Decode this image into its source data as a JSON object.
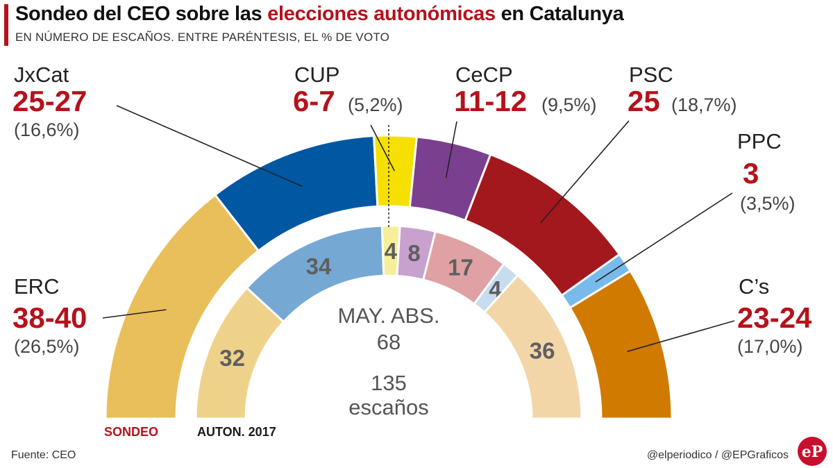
{
  "header": {
    "title_prefix": "Sondeo del CEO sobre las ",
    "title_accent": "elecciones autonómicas",
    "title_suffix": " en Catalunya",
    "subtitle": "EN NÚMERO DE ESCAÑOS.  ENTRE PARÉNTESIS, EL % DE VOTO"
  },
  "chart_data": {
    "type": "parliament-semicircle",
    "title": "Sondeo del CEO sobre las elecciones autonómicas en Catalunya",
    "subtitle": "EN NÚMERO DE ESCAÑOS.  ENTRE PARÉNTESIS, EL % DE VOTO",
    "total_seats": 135,
    "majority_seats": 68,
    "rings": [
      {
        "name": "SONDEO",
        "label": "SONDEO",
        "series": [
          {
            "party": "ERC",
            "seats_label": "38-40",
            "seats": 39,
            "vote_pct": "(26,5%)",
            "color": "#e9bf5b"
          },
          {
            "party": "JxCat",
            "seats_label": "25-27",
            "seats": 26,
            "vote_pct": "(16,6%)",
            "color": "#0058a3"
          },
          {
            "party": "CUP",
            "seats_label": "6-7",
            "seats": 6.5,
            "vote_pct": "(5,2%)",
            "color": "#f5e000"
          },
          {
            "party": "CeCP",
            "seats_label": "11-12",
            "seats": 11.5,
            "vote_pct": "(9,5%)",
            "color": "#7b3f8f"
          },
          {
            "party": "PSC",
            "seats_label": "25",
            "seats": 25,
            "vote_pct": "(18,7%)",
            "color": "#a3181c"
          },
          {
            "party": "PPC",
            "seats_label": "3",
            "seats": 3,
            "vote_pct": "(3,5%)",
            "color": "#78baea"
          },
          {
            "party": "C's",
            "seats_label": "23-24",
            "seats": 23.5,
            "vote_pct": "(17,0%)",
            "color": "#d07a00"
          }
        ]
      },
      {
        "name": "AUTON. 2017",
        "label": "AUTON. 2017",
        "series": [
          {
            "party": "ERC",
            "seats": 32,
            "label": "32",
            "color": "#efd28a"
          },
          {
            "party": "JxCat",
            "seats": 34,
            "label": "34",
            "color": "#76a8d4"
          },
          {
            "party": "CUP",
            "seats": 4,
            "label": "4",
            "color": "#f6ef98"
          },
          {
            "party": "CeCP",
            "seats": 8,
            "label": "8",
            "color": "#c8a1cf"
          },
          {
            "party": "PSC",
            "seats": 17,
            "label": "17",
            "color": "#dfa1a3"
          },
          {
            "party": "PPC",
            "seats": 4,
            "label": "4",
            "color": "#c7dcef"
          },
          {
            "party": "C's",
            "seats": 36,
            "label": "36",
            "color": "#f3d6a8"
          }
        ]
      }
    ],
    "labels": [
      {
        "party": "JxCat",
        "name": "JxCat",
        "seats": "25-27",
        "pct": "(16,6%)"
      },
      {
        "party": "CUP",
        "name": "CUP",
        "seats": "6-7",
        "pct": "(5,2%)"
      },
      {
        "party": "CeCP",
        "name": "CeCP",
        "seats": "11-12",
        "pct": "(9,5%)"
      },
      {
        "party": "PSC",
        "name": "PSC",
        "seats": "25",
        "pct": "(18,7%)"
      },
      {
        "party": "PPC",
        "name": "PPC",
        "seats": "3",
        "pct": "(3,5%)"
      },
      {
        "party": "ERC",
        "name": "ERC",
        "seats": "38-40",
        "pct": "(26,5%)"
      },
      {
        "party": "C's",
        "name": "C’s",
        "seats": "23-24",
        "pct": "(17,0%)"
      }
    ],
    "center": {
      "majority_label": "MAY. ABS.",
      "majority_value": "68",
      "total_value": "135",
      "total_label": "escaños"
    }
  },
  "footer": {
    "source": "Fuente: CEO",
    "credit": "@elperiodico / @EPGraficos",
    "logo_text": "eP"
  }
}
